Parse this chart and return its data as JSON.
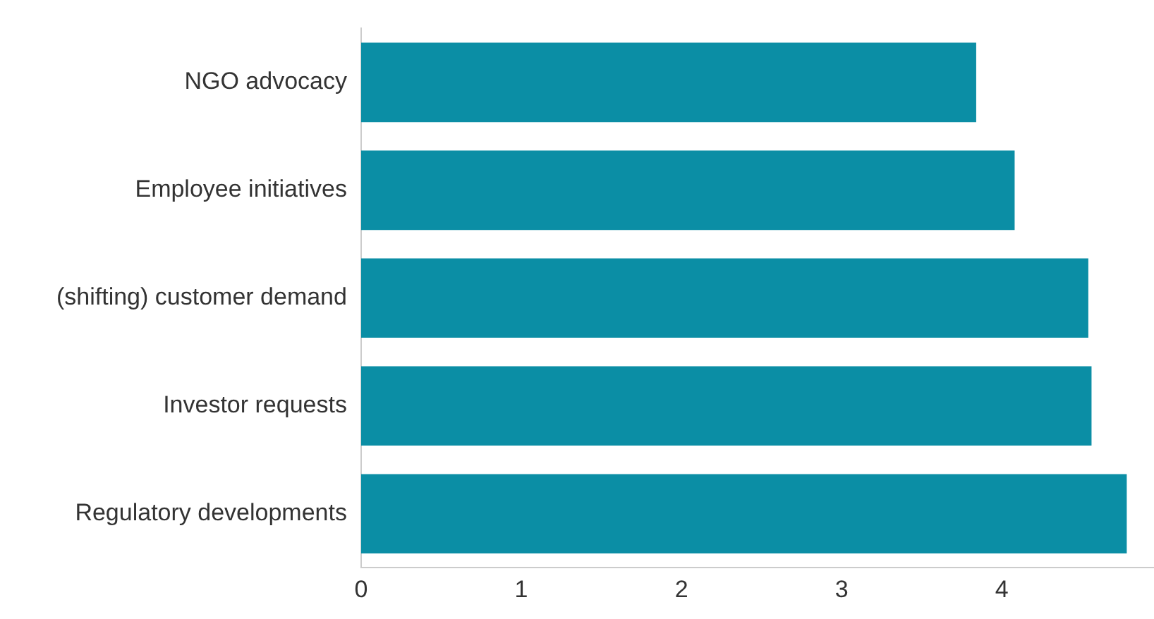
{
  "chart_data": {
    "type": "bar",
    "orientation": "horizontal",
    "categories": [
      "NGO advocacy",
      "Employee initiatives",
      "(shifting) customer demand",
      "Investor requests",
      "Regulatory developments"
    ],
    "values": [
      3.84,
      4.08,
      4.54,
      4.56,
      4.78
    ],
    "color": "#0b8ea5",
    "xlim": [
      0,
      4.95
    ],
    "xticks": [
      0,
      1,
      2,
      3,
      4
    ],
    "grid": false,
    "legend": false
  }
}
